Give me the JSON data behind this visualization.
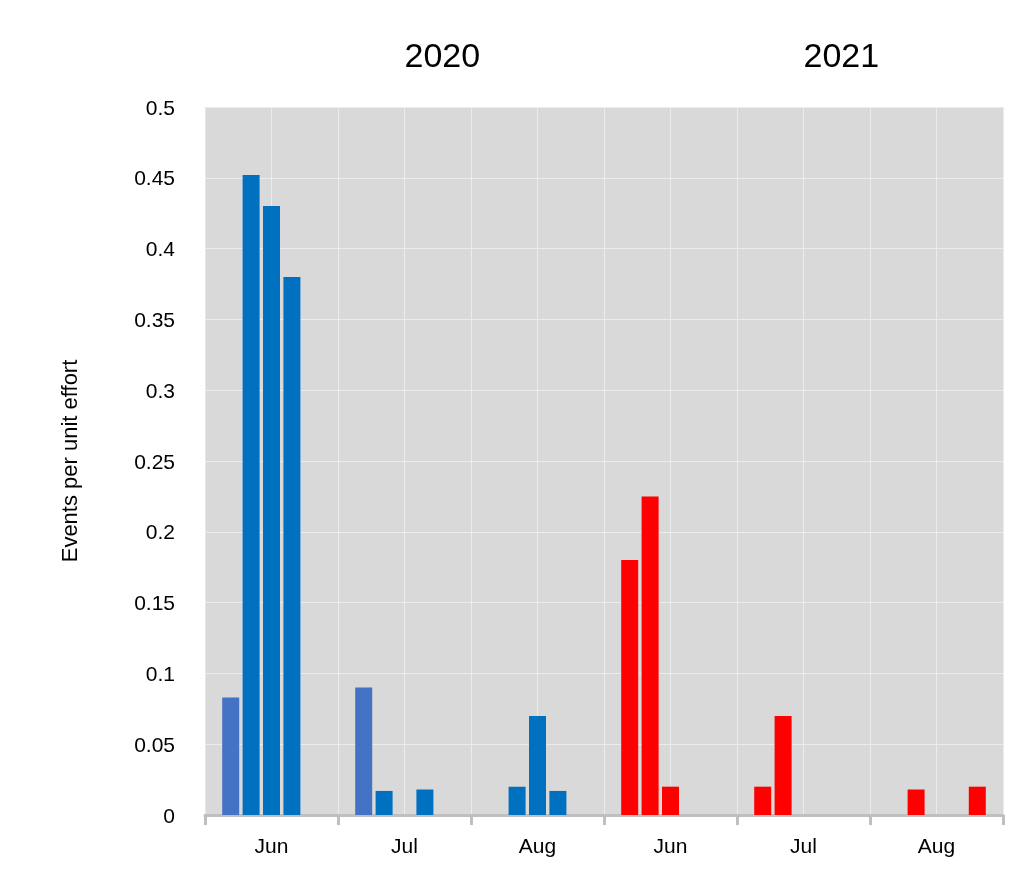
{
  "chart_data": {
    "type": "bar",
    "categories": [
      "Jun",
      "Jul",
      "Aug",
      "Jun",
      "Jul",
      "Aug"
    ],
    "series": [
      {
        "colors": [
          "#4472c4",
          "#4472c4",
          "#0070c0",
          "#ff0000",
          "#ff0000",
          "#ff0000"
        ],
        "values": [
          0.083,
          0.09,
          null,
          0.18,
          0.02,
          null
        ]
      },
      {
        "colors": [
          "#0070c0",
          "#0070c0",
          "#0070c0",
          "#ff0000",
          "#ff0000",
          "#ff0000"
        ],
        "values": [
          0.452,
          0.017,
          0.02,
          0.225,
          0.07,
          0.018
        ]
      },
      {
        "colors": [
          "#0070c0",
          "#0070c0",
          "#0070c0",
          "#ff0000",
          "#ff0000",
          "#ff0000"
        ],
        "values": [
          0.43,
          null,
          0.07,
          0.02,
          null,
          null
        ]
      },
      {
        "colors": [
          "#0070c0",
          "#0070c0",
          "#0070c0",
          "#ff0000",
          "#ff0000",
          "#ff0000"
        ],
        "values": [
          0.38,
          0.018,
          0.017,
          null,
          null,
          null
        ]
      },
      {
        "colors": [
          "#0070c0",
          "#0070c0",
          "#0070c0",
          "#ff0000",
          "#ff0000",
          "#ff0000"
        ],
        "values": [
          null,
          null,
          null,
          null,
          null,
          0.02
        ]
      }
    ],
    "ylabel": "Events per unit effort",
    "ylim": [
      0,
      0.5
    ],
    "yticks": [
      0,
      0.05,
      0.1,
      0.15,
      0.2,
      0.25,
      0.3,
      0.35,
      0.4,
      0.45,
      0.5
    ],
    "annotations": [
      "2020",
      "2021"
    ],
    "grid": true
  }
}
